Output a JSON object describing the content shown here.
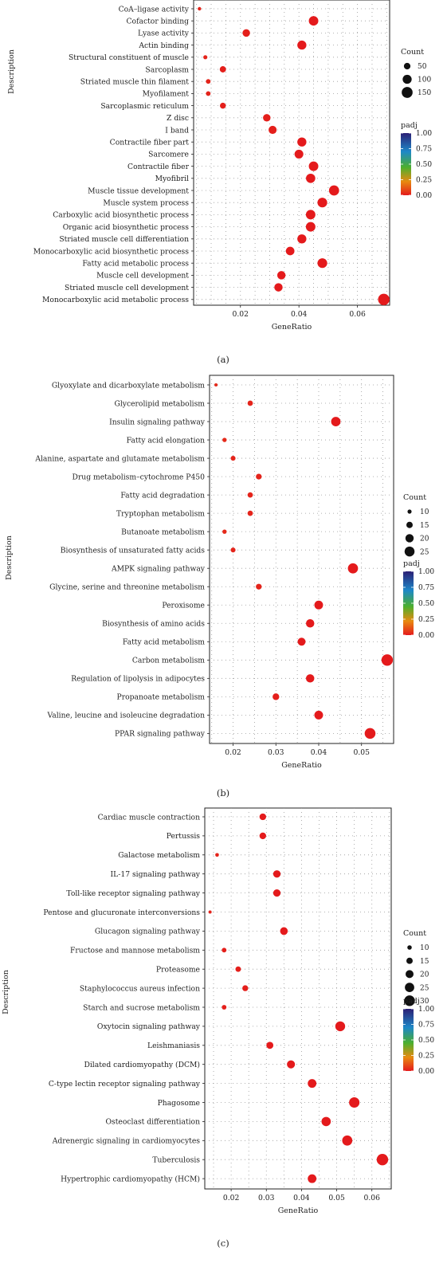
{
  "chart_data": [
    {
      "type": "scatter",
      "panel_label": "(a)",
      "xlabel": "GeneRatio",
      "ylabel": "Description",
      "xticks": [
        "0.02",
        "0.04",
        "0.06"
      ],
      "xlim": [
        0.004,
        0.071
      ],
      "grid": true,
      "legend_position": "right",
      "size_legend": {
        "title": "Count",
        "labels": [
          "50",
          "100",
          "150"
        ],
        "values": [
          50,
          100,
          150
        ]
      },
      "color_legend": {
        "title": "padj",
        "labels": [
          "1.00",
          "0.75",
          "0.50",
          "0.25",
          "0.00"
        ]
      },
      "categories": [
        "CoA–ligase activity",
        "Cofactor binding",
        "Lyase activity",
        "Actin binding",
        "Structural constituent of muscle",
        "Sarcoplasm",
        "Striated muscle thin filament",
        "Myofilament",
        "Sarcoplasmic reticulum",
        "Z disc",
        "I band",
        "Contractile fiber part",
        "Sarcomere",
        "Contractile fiber",
        "Myofibril",
        "Muscle tissue development",
        "Muscle system process",
        "Carboxylic acid biosynthetic process",
        "Organic acid biosynthetic process",
        "Striated muscle cell differentiation",
        "Monocarboxylic acid biosynthetic process",
        "Fatty acid metabolic process",
        "Muscle cell development",
        "Striated muscle cell development",
        "Monocarboxylic acid metabolic process"
      ],
      "x": [
        0.006,
        0.045,
        0.022,
        0.041,
        0.008,
        0.014,
        0.009,
        0.009,
        0.014,
        0.029,
        0.031,
        0.041,
        0.04,
        0.045,
        0.044,
        0.052,
        0.048,
        0.044,
        0.044,
        0.041,
        0.037,
        0.048,
        0.034,
        0.033,
        0.069
      ],
      "count": [
        10,
        100,
        60,
        90,
        15,
        40,
        20,
        20,
        35,
        60,
        70,
        90,
        85,
        100,
        95,
        115,
        105,
        100,
        100,
        90,
        80,
        105,
        75,
        75,
        150
      ],
      "padj": [
        0.02,
        0.0,
        0.01,
        0.0,
        0.02,
        0.01,
        0.02,
        0.02,
        0.01,
        0.01,
        0.01,
        0.0,
        0.0,
        0.0,
        0.0,
        0.0,
        0.0,
        0.0,
        0.0,
        0.0,
        0.0,
        0.0,
        0.0,
        0.0,
        0.0
      ]
    },
    {
      "type": "scatter",
      "panel_label": "(b)",
      "xlabel": "GeneRatio",
      "ylabel": "Description",
      "xticks": [
        "0.02",
        "0.03",
        "0.04",
        "0.05"
      ],
      "xlim": [
        0.0145,
        0.0575
      ],
      "grid": true,
      "legend_position": "right",
      "size_legend": {
        "title": "Count",
        "labels": [
          "10",
          "15",
          "20",
          "25"
        ],
        "values": [
          10,
          15,
          20,
          25
        ]
      },
      "color_legend": {
        "title": "padj",
        "labels": [
          "1.00",
          "0.75",
          "0.50",
          "0.25",
          "0.00"
        ]
      },
      "categories": [
        "Glyoxylate and dicarboxylate metabolism",
        "Glycerolipid metabolism",
        "Insulin signaling pathway",
        "Fatty acid elongation",
        "Alanine, aspartate and glutamate metabolism",
        "Drug metabolism–cytochrome P450",
        "Fatty acid degradation",
        "Tryptophan metabolism",
        "Butanoate metabolism",
        "Biosynthesis of unsaturated fatty acids",
        "AMPK signaling pathway",
        "Glycine, serine and threonine metabolism",
        "Peroxisome",
        "Biosynthesis of amino acids",
        "Fatty acid metabolism",
        "Carbon metabolism",
        "Regulation of lipolysis in adipocytes",
        "Propanoate metabolism",
        "Valine, leucine and isoleucine degradation",
        "PPAR signaling pathway"
      ],
      "x": [
        0.016,
        0.024,
        0.044,
        0.018,
        0.02,
        0.026,
        0.024,
        0.024,
        0.018,
        0.02,
        0.048,
        0.026,
        0.04,
        0.038,
        0.036,
        0.056,
        0.038,
        0.03,
        0.04,
        0.052
      ],
      "count": [
        8,
        12,
        22,
        10,
        11,
        13,
        12,
        12,
        10,
        11,
        24,
        13,
        20,
        19,
        18,
        28,
        19,
        15,
        20,
        26
      ],
      "padj": [
        0.03,
        0.02,
        0.0,
        0.03,
        0.02,
        0.02,
        0.02,
        0.02,
        0.03,
        0.02,
        0.0,
        0.02,
        0.0,
        0.0,
        0.0,
        0.0,
        0.0,
        0.01,
        0.0,
        0.0
      ]
    },
    {
      "type": "scatter",
      "panel_label": "(c)",
      "xlabel": "GeneRatio",
      "ylabel": "Description",
      "xticks": [
        "0.02",
        "0.03",
        "0.04",
        "0.05",
        "0.06"
      ],
      "xlim": [
        0.0125,
        0.0655
      ],
      "grid": true,
      "legend_position": "right",
      "size_legend": {
        "title": "Count",
        "labels": [
          "10",
          "15",
          "20",
          "25",
          "30"
        ],
        "values": [
          10,
          15,
          20,
          25,
          30
        ]
      },
      "color_legend": {
        "title": "padj",
        "labels": [
          "1.00",
          "0.75",
          "0.50",
          "0.25",
          "0.00"
        ]
      },
      "categories": [
        "Cardiac muscle contraction",
        "Pertussis",
        "Galactose metabolism",
        "IL-17 signaling pathway",
        "Toll-like receptor signaling pathway",
        "Pentose and glucuronate interconversions",
        "Glucagon signaling pathway",
        "Fructose and mannose metabolism",
        "Proteasome",
        "Staphylococcus aureus infection",
        "Starch and sucrose metabolism",
        "Oxytocin signaling pathway",
        "Leishmaniasis",
        "Dilated cardiomyopathy (DCM)",
        "C-type lectin receptor signaling pathway",
        "Phagosome",
        "Osteoclast differentiation",
        "Adrenergic signaling in cardiomyocytes",
        "Tuberculosis",
        "Hypertrophic cardiomyopathy (HCM)"
      ],
      "x": [
        0.029,
        0.029,
        0.016,
        0.033,
        0.033,
        0.014,
        0.035,
        0.018,
        0.022,
        0.024,
        0.018,
        0.051,
        0.031,
        0.037,
        0.043,
        0.055,
        0.047,
        0.053,
        0.063,
        0.043
      ],
      "count": [
        15,
        15,
        8,
        17,
        17,
        7,
        18,
        10,
        12,
        13,
        10,
        25,
        16,
        19,
        21,
        27,
        23,
        26,
        31,
        21
      ],
      "padj": [
        0.0,
        0.0,
        0.02,
        0.0,
        0.0,
        0.02,
        0.0,
        0.01,
        0.01,
        0.01,
        0.01,
        0.0,
        0.0,
        0.0,
        0.0,
        0.0,
        0.0,
        0.0,
        0.0,
        0.0
      ]
    }
  ]
}
